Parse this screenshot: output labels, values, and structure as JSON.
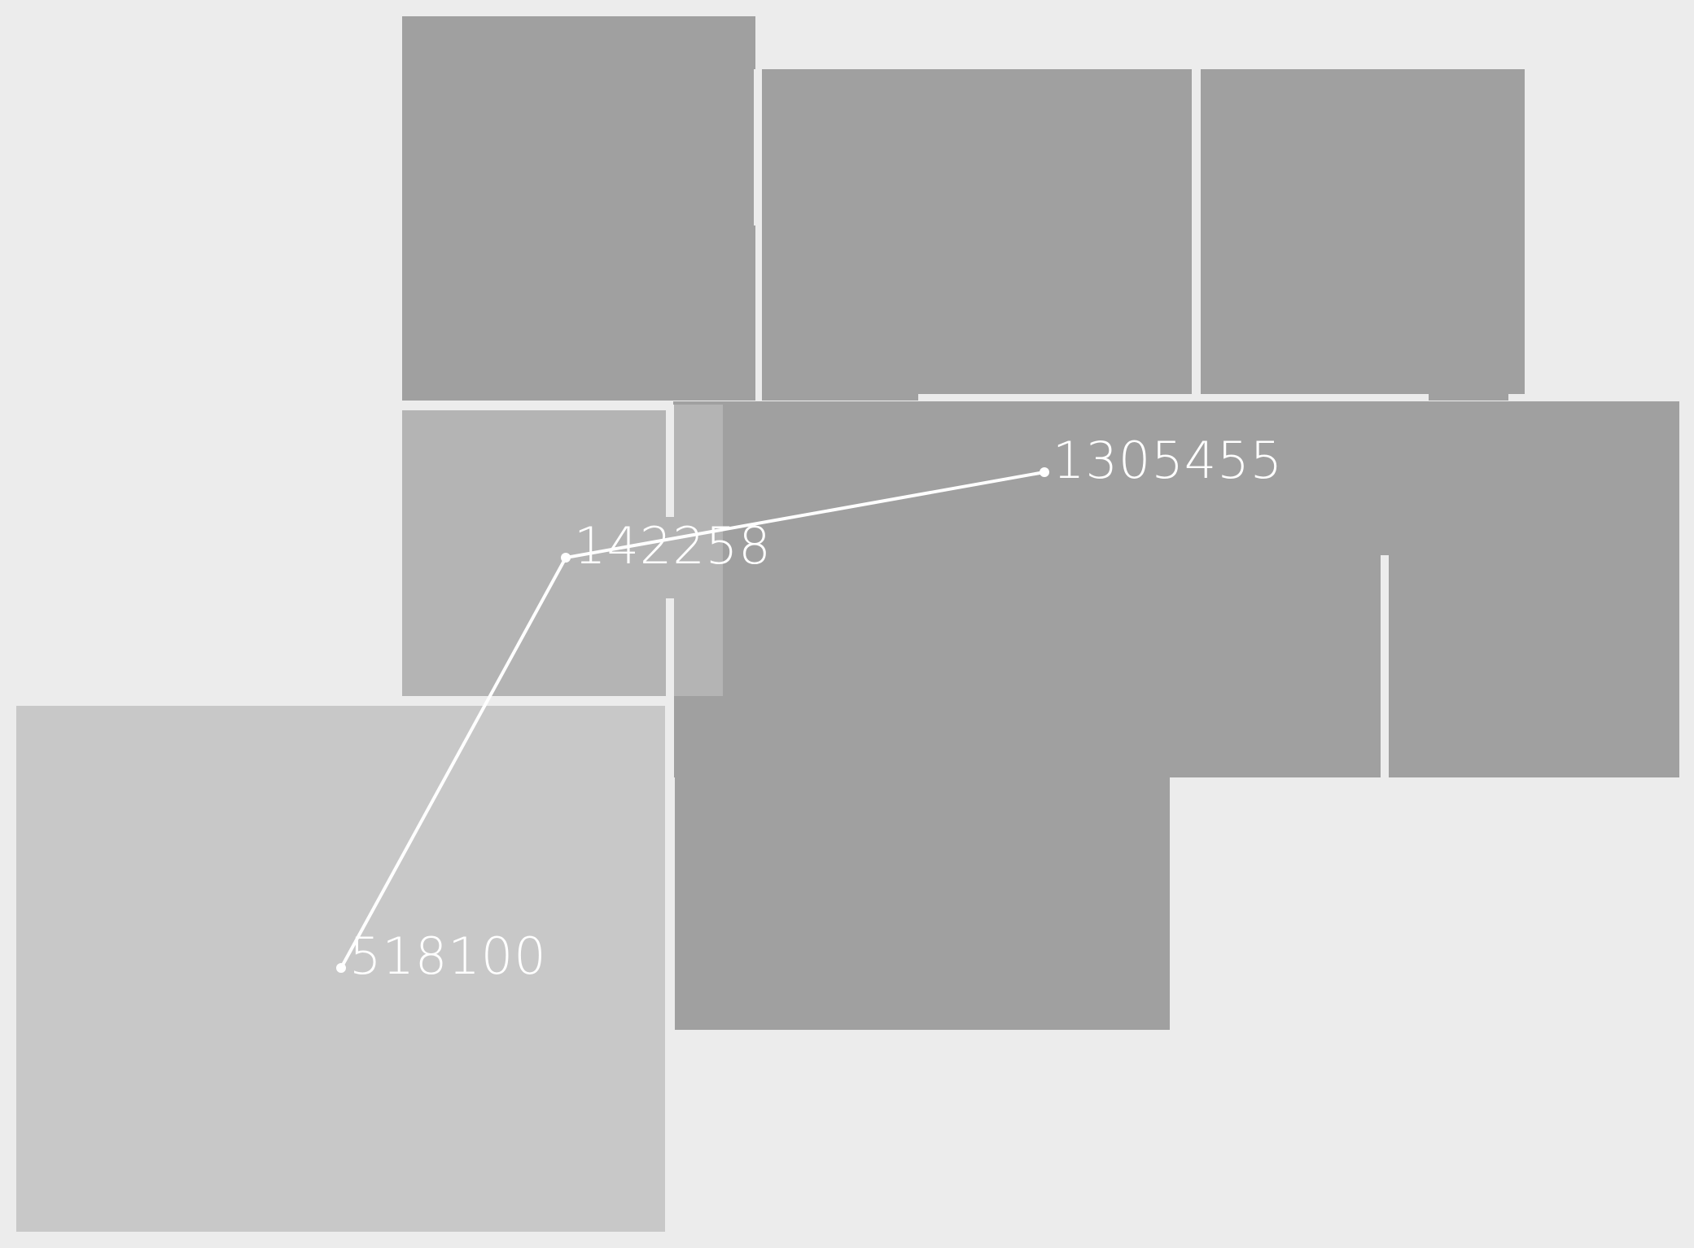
{
  "map": {
    "points": [
      {
        "id": "p1",
        "label": "1305455"
      },
      {
        "id": "p2",
        "label": "142258"
      },
      {
        "id": "p3",
        "label": "518100"
      }
    ]
  }
}
